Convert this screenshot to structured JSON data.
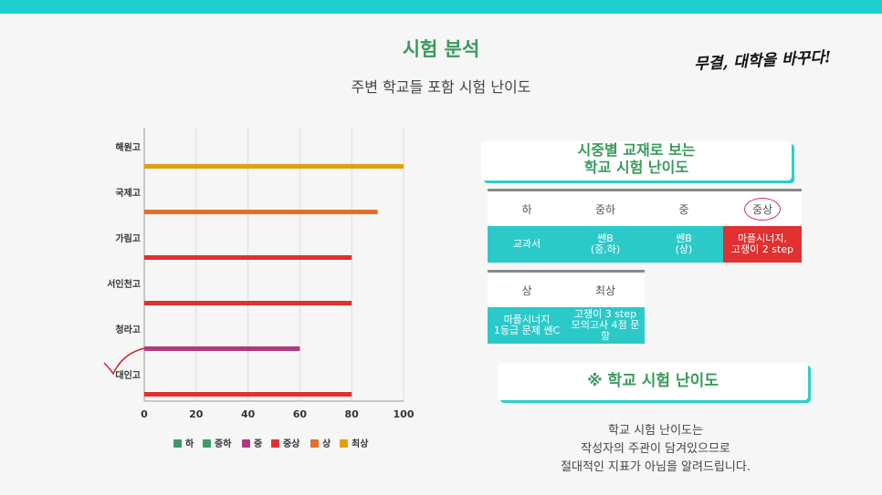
{
  "header": {
    "title": "시험 분석",
    "subtitle": "주변 학교들 포함 시험 난이도",
    "brand": "무결, 대학을 바꾸다!"
  },
  "chart_data": {
    "type": "bar",
    "orientation": "horizontal",
    "categories": [
      "해원고",
      "국제고",
      "가림고",
      "서인천고",
      "청라고",
      "대인고"
    ],
    "values": [
      100,
      90,
      80,
      80,
      60,
      80
    ],
    "bar_levels": [
      "최상",
      "상",
      "중상",
      "중상",
      "중",
      "중상"
    ],
    "xlim": [
      0,
      100
    ],
    "xticks": [
      0,
      20,
      40,
      60,
      80,
      100
    ],
    "grid": true,
    "legend": [
      {
        "name": "하",
        "color": "#3d9a6a"
      },
      {
        "name": "중하",
        "color": "#3d9a6a"
      },
      {
        "name": "중",
        "color": "#b03a7e"
      },
      {
        "name": "중상",
        "color": "#e03030"
      },
      {
        "name": "상",
        "color": "#e0702a"
      },
      {
        "name": "최상",
        "color": "#e0a010"
      }
    ],
    "legend_position": "bottom",
    "highlight": "대인고"
  },
  "panel": {
    "heading_line1": "시중별 교재로 보는",
    "heading_line2": "학교 시험 난이도",
    "grid1": {
      "levels": [
        "하",
        "중하",
        "중",
        "중상"
      ],
      "books": [
        "교과서",
        "쎈B\n(중,하)",
        "쎈B\n(상)",
        "마플시너지,\n고쟁이 2 step"
      ]
    },
    "grid2": {
      "levels": [
        "상",
        "최상"
      ],
      "books": [
        "마플시너지\n1등급 문제 쎈C",
        "고쟁이 3 step\n모의고사 4점 문항"
      ]
    },
    "note_title": "※ 학교 시험 난이도",
    "note_text": "학교 시험 난이도는\n작성자의 주관이 담겨있으므로\n절대적인 지표가 아님을 알려드립니다."
  },
  "colors": {
    "accent": "#1fcfcf",
    "title_green": "#3a9a5c",
    "table_teal": "#2cc9c9",
    "table_red": "#e03030"
  }
}
